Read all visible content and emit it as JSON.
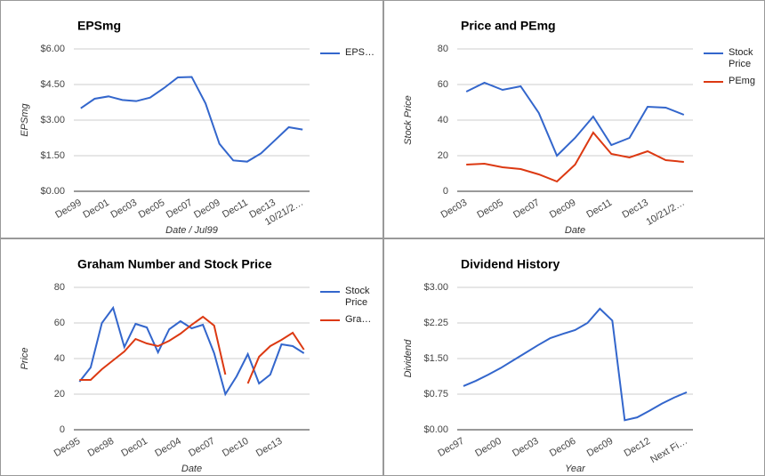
{
  "chart_data": [
    {
      "type": "line",
      "title": "EPSmg",
      "ylabel": "EPSmg",
      "xlabel": "Date / Jul99",
      "legend": "right",
      "categories": [
        "Dec99",
        null,
        "Dec01",
        null,
        "Dec03",
        null,
        "Dec05",
        null,
        "Dec07",
        null,
        "Dec09",
        null,
        "Dec11",
        null,
        "Dec13",
        null,
        "10/21/2…"
      ],
      "series": [
        {
          "name": "EPS…",
          "color": "#3366cc",
          "values": [
            3.5,
            3.9,
            4.0,
            3.85,
            3.8,
            3.95,
            4.35,
            4.8,
            4.82,
            3.7,
            2.0,
            1.3,
            1.25,
            1.6,
            2.15,
            2.7,
            2.6
          ]
        }
      ],
      "ylim": [
        0,
        6
      ],
      "yticks": [
        {
          "value": 0,
          "label": "$0.00"
        },
        {
          "value": 1.5,
          "label": "$1.50"
        },
        {
          "value": 3,
          "label": "$3.00"
        },
        {
          "value": 4.5,
          "label": "$4.50"
        },
        {
          "value": 6,
          "label": "$6.00"
        }
      ],
      "grid": true
    },
    {
      "type": "line",
      "title": "Price and PEmg",
      "ylabel": "Stock Price",
      "xlabel": "Date",
      "legend": "right",
      "categories": [
        "Dec03",
        null,
        "Dec05",
        null,
        "Dec07",
        null,
        "Dec09",
        null,
        "Dec11",
        null,
        "Dec13",
        null,
        "10/21/2…"
      ],
      "series": [
        {
          "name": "Stock Price",
          "color": "#3366cc",
          "values": [
            56,
            61,
            57,
            59,
            44,
            20,
            30,
            42,
            26,
            30,
            47.5,
            47,
            43
          ]
        },
        {
          "name": "PEmg",
          "color": "#dc3912",
          "values": [
            15,
            15.5,
            13.5,
            12.5,
            9.5,
            5.5,
            15,
            33,
            21,
            19,
            22.5,
            17.5,
            16.5
          ]
        }
      ],
      "ylim": [
        0,
        80
      ],
      "yticks": [
        0,
        20,
        40,
        60,
        80
      ],
      "grid": true
    },
    {
      "type": "line",
      "title": "Graham Number and Stock Price",
      "ylabel": "Price",
      "xlabel": "Date",
      "legend": "right",
      "categories": [
        "Dec95",
        null,
        null,
        "Dec98",
        null,
        null,
        "Dec01",
        null,
        null,
        "Dec04",
        null,
        null,
        "Dec07",
        null,
        null,
        "Dec10",
        null,
        null,
        "Dec13",
        null,
        null
      ],
      "series": [
        {
          "name": "Stock Price",
          "color": "#3366cc",
          "values": [
            27,
            35,
            60,
            68.5,
            46.5,
            59.5,
            57.5,
            43.5,
            56.5,
            61,
            57,
            59,
            43,
            20,
            30,
            42.5,
            26,
            31,
            48,
            47,
            43
          ]
        },
        {
          "name": "Gra…",
          "color": "#dc3912",
          "values": [
            28,
            28,
            34,
            39,
            44,
            51,
            48.5,
            47,
            50,
            54,
            59,
            63.5,
            58.5,
            31,
            null,
            26,
            41,
            47,
            50.5,
            54.5,
            45
          ]
        }
      ],
      "ylim": [
        0,
        80
      ],
      "yticks": [
        0,
        20,
        40,
        60,
        80
      ],
      "grid": true
    },
    {
      "type": "line",
      "title": "Dividend History",
      "ylabel": "Dividend",
      "xlabel": "Year",
      "categories": [
        "Dec97",
        null,
        null,
        "Dec00",
        null,
        null,
        "Dec03",
        null,
        null,
        "Dec06",
        null,
        null,
        "Dec09",
        null,
        null,
        "Dec12",
        null,
        null,
        "Next Fi…"
      ],
      "series": [
        {
          "name": "Dividend",
          "color": "#3366cc",
          "values": [
            0.92,
            1.03,
            1.16,
            1.3,
            1.46,
            1.62,
            1.78,
            1.93,
            2.02,
            2.1,
            2.25,
            2.55,
            2.3,
            0.2,
            0.26,
            0.4,
            0.55,
            0.68,
            0.79
          ]
        }
      ],
      "ylim": [
        0,
        3
      ],
      "yticks": [
        {
          "value": 0,
          "label": "$0.00"
        },
        {
          "value": 0.75,
          "label": "$0.75"
        },
        {
          "value": 1.5,
          "label": "$1.50"
        },
        {
          "value": 2.25,
          "label": "$2.25"
        },
        {
          "value": 3,
          "label": "$3.00"
        }
      ],
      "grid": true
    }
  ]
}
